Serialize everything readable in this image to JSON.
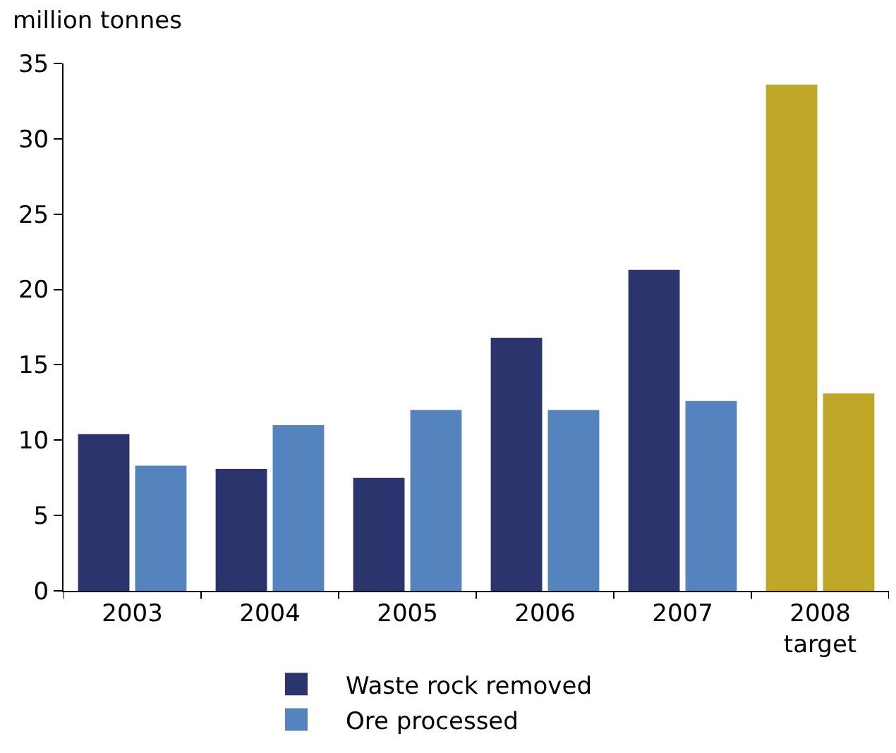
{
  "chart_data": {
    "type": "bar",
    "ylabel": "million tonnes",
    "categories": [
      "2003",
      "2004",
      "2005",
      "2006",
      "2007",
      "2008\ntarget"
    ],
    "series": [
      {
        "name": "Waste rock removed",
        "color": "#2b346c",
        "colors": [
          "#2b346c",
          "#2b346c",
          "#2b346c",
          "#2b346c",
          "#2b346c",
          "#bfa828"
        ],
        "values": [
          10.4,
          8.1,
          7.5,
          16.8,
          21.3,
          33.6
        ]
      },
      {
        "name": "Ore processed",
        "color": "#5583bd",
        "colors": [
          "#5583bd",
          "#5583bd",
          "#5583bd",
          "#5583bd",
          "#5583bd",
          "#bfa828"
        ],
        "values": [
          8.3,
          11.0,
          12.0,
          12.0,
          12.6,
          13.1
        ]
      }
    ],
    "ylim": [
      0,
      35
    ],
    "yticks": [
      0,
      5,
      10,
      15,
      20,
      25,
      30,
      35
    ],
    "grid": false,
    "legend": "bottom"
  }
}
